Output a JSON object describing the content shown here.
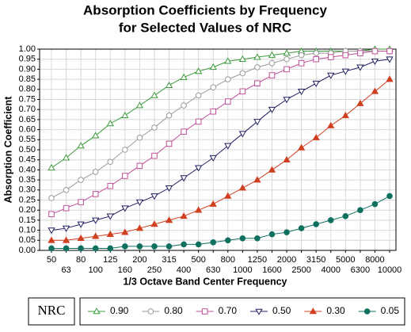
{
  "chart_data": {
    "type": "line",
    "title": "Absorption Coefficients by Frequency",
    "subtitle": "for Selected Values of NRC",
    "x_label": "1/3 Octave Band Center Frequency",
    "y_label": "Absorption Coefficient",
    "legend_title": "NRC",
    "categories": [
      "50",
      "63",
      "80",
      "100",
      "125",
      "160",
      "200",
      "250",
      "315",
      "400",
      "500",
      "630",
      "800",
      "1000",
      "1250",
      "1600",
      "2000",
      "2500",
      "3150",
      "4000",
      "5000",
      "6300",
      "8000",
      "10000"
    ],
    "ylim": [
      0,
      1
    ],
    "yticks": [
      {
        "value": 0,
        "label": "0.00"
      },
      0.05,
      {
        "value": 0.1,
        "label": "0.10"
      },
      0.15,
      {
        "value": 0.2,
        "label": "0.20"
      },
      0.25,
      {
        "value": 0.3,
        "label": "0.30"
      },
      0.35,
      {
        "value": 0.4,
        "label": "0.40"
      },
      0.45,
      {
        "value": 0.5,
        "label": "0.50"
      },
      0.55,
      {
        "value": 0.6,
        "label": "0.60"
      },
      0.65,
      {
        "value": 0.7,
        "label": "0.70"
      },
      0.75,
      {
        "value": 0.8,
        "label": "0.80"
      },
      0.85,
      {
        "value": 0.9,
        "label": "0.90"
      },
      0.95,
      {
        "value": 1,
        "label": "1.00"
      }
    ],
    "grid": true,
    "legend": "bottom",
    "series": [
      {
        "name": "0.90",
        "color": "#3a9a3a",
        "marker": "triangle-up",
        "filled": false,
        "values": [
          0.41,
          0.46,
          0.52,
          0.57,
          0.63,
          0.67,
          0.72,
          0.77,
          0.82,
          0.86,
          0.89,
          0.91,
          0.94,
          0.95,
          0.96,
          0.97,
          0.98,
          0.99,
          0.99,
          0.99,
          0.99,
          0.99,
          1.0,
          1.0
        ]
      },
      {
        "name": "0.80",
        "color": "#9a9a9a",
        "marker": "circle",
        "filled": false,
        "values": [
          0.26,
          0.3,
          0.35,
          0.39,
          0.44,
          0.5,
          0.56,
          0.61,
          0.67,
          0.72,
          0.77,
          0.81,
          0.85,
          0.88,
          0.91,
          0.93,
          0.95,
          0.97,
          0.98,
          0.98,
          0.99,
          0.99,
          0.99,
          0.99
        ]
      },
      {
        "name": "0.70",
        "color": "#c0509a",
        "marker": "square",
        "filled": false,
        "values": [
          0.18,
          0.21,
          0.24,
          0.28,
          0.32,
          0.37,
          0.42,
          0.47,
          0.53,
          0.59,
          0.64,
          0.69,
          0.74,
          0.79,
          0.83,
          0.87,
          0.9,
          0.93,
          0.95,
          0.96,
          0.97,
          0.98,
          0.99,
          0.99
        ]
      },
      {
        "name": "0.50",
        "color": "#202060",
        "marker": "triangle-down",
        "filled": false,
        "values": [
          0.1,
          0.11,
          0.13,
          0.15,
          0.17,
          0.21,
          0.24,
          0.27,
          0.31,
          0.36,
          0.41,
          0.46,
          0.52,
          0.58,
          0.64,
          0.7,
          0.75,
          0.79,
          0.83,
          0.87,
          0.89,
          0.91,
          0.94,
          0.95
        ]
      },
      {
        "name": "0.30",
        "color": "#d04020",
        "marker": "triangle-up",
        "filled": true,
        "values": [
          0.05,
          0.05,
          0.06,
          0.07,
          0.08,
          0.09,
          0.11,
          0.13,
          0.15,
          0.17,
          0.2,
          0.23,
          0.27,
          0.31,
          0.35,
          0.4,
          0.45,
          0.51,
          0.56,
          0.62,
          0.67,
          0.73,
          0.79,
          0.85
        ]
      },
      {
        "name": "0.05",
        "color": "#107060",
        "marker": "circle",
        "filled": true,
        "values": [
          0.01,
          0.01,
          0.01,
          0.01,
          0.01,
          0.02,
          0.02,
          0.02,
          0.02,
          0.03,
          0.03,
          0.04,
          0.05,
          0.06,
          0.06,
          0.08,
          0.09,
          0.11,
          0.13,
          0.15,
          0.17,
          0.2,
          0.23,
          0.27
        ]
      }
    ]
  }
}
